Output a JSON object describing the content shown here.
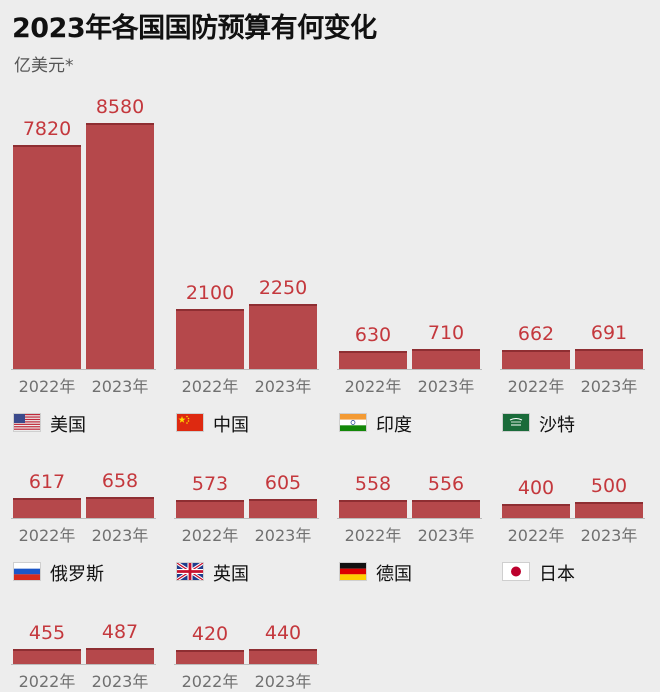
{
  "title": "2023年各国国防预算有何变化",
  "unit": "亿美元*",
  "chart_data": {
    "type": "bar",
    "title": "2023年各国国防预算有何变化",
    "ylabel": "亿美元*",
    "categories": [
      "2022年",
      "2023年"
    ],
    "series": [
      {
        "name": "美国",
        "values": [
          7820,
          8580
        ]
      },
      {
        "name": "中国",
        "values": [
          2100,
          2250
        ]
      },
      {
        "name": "印度",
        "values": [
          630,
          710
        ]
      },
      {
        "name": "沙特",
        "values": [
          662,
          691
        ]
      },
      {
        "name": "俄罗斯",
        "values": [
          617,
          658
        ]
      },
      {
        "name": "英国",
        "values": [
          573,
          605
        ]
      },
      {
        "name": "德国",
        "values": [
          558,
          556
        ]
      },
      {
        "name": "日本",
        "values": [
          400,
          500
        ]
      },
      {
        "name": "",
        "values": [
          455,
          487
        ]
      },
      {
        "name": "",
        "values": [
          420,
          440
        ]
      }
    ]
  },
  "flags": [
    "us-flag-icon",
    "china-flag-icon",
    "india-flag-icon",
    "saudi-flag-icon",
    "russia-flag-icon",
    "uk-flag-icon",
    "germany-flag-icon",
    "japan-flag-icon",
    "",
    ""
  ],
  "colors": {
    "bar": "#b5484b",
    "value_label": "#c4383d",
    "background": "#ededed"
  }
}
